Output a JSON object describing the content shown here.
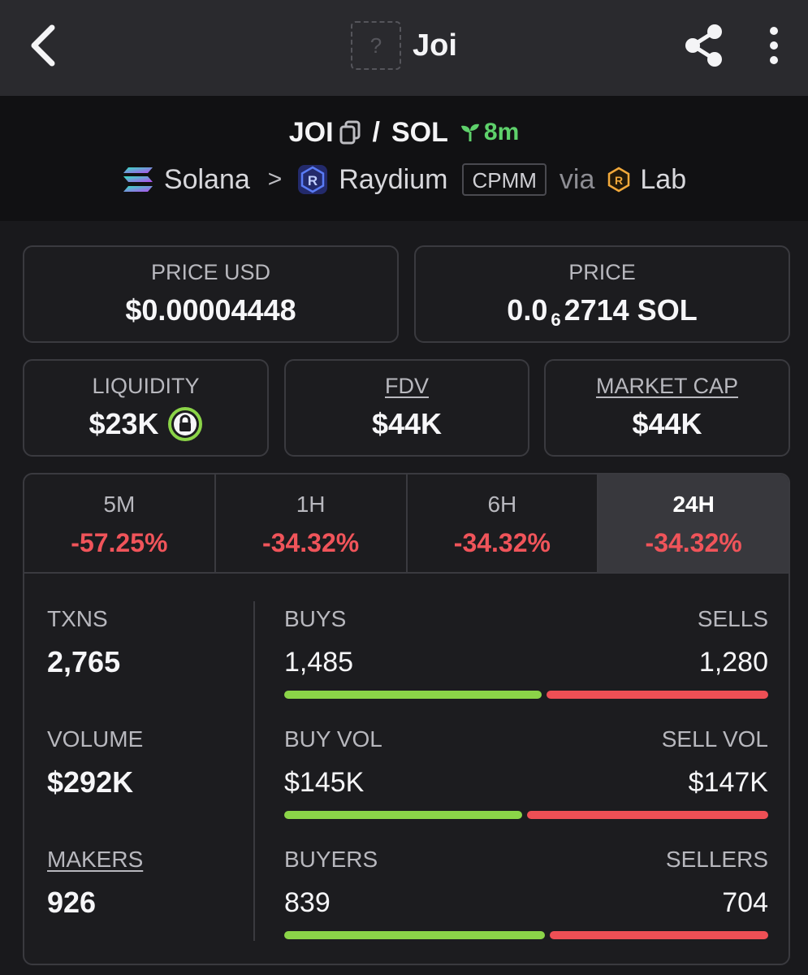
{
  "header": {
    "title": "Joi",
    "token_placeholder": "?"
  },
  "pair": {
    "base": "JOI",
    "separator": "/",
    "quote": "SOL",
    "age": "8m",
    "chain": "Solana",
    "chevron": ">",
    "dex": "Raydium",
    "pool_type": "CPMM",
    "via": "via",
    "launchpad": "Lab"
  },
  "stats": {
    "price_usd_label": "PRICE USD",
    "price_usd": "$0.00004448",
    "price_label": "PRICE",
    "price_prefix": "0.0",
    "price_zeros": "6",
    "price_suffix": "2714 SOL",
    "liquidity_label": "LIQUIDITY",
    "liquidity": "$23K",
    "fdv_label": "FDV",
    "fdv": "$44K",
    "mcap_label": "MARKET CAP",
    "mcap": "$44K"
  },
  "timeframes": [
    {
      "label": "5M",
      "change": "-57.25%"
    },
    {
      "label": "1H",
      "change": "-34.32%"
    },
    {
      "label": "6H",
      "change": "-34.32%"
    },
    {
      "label": "24H",
      "change": "-34.32%"
    }
  ],
  "active_timeframe": "24H",
  "activity": {
    "txns_label": "TXNS",
    "txns": "2,765",
    "volume_label": "VOLUME",
    "volume": "$292K",
    "makers_label": "MAKERS",
    "makers": "926",
    "buys_label": "BUYS",
    "buys": "1,485",
    "sells_label": "SELLS",
    "sells": "1,280",
    "buy_share": 0.537,
    "buy_vol_label": "BUY VOL",
    "buy_vol": "$145K",
    "sell_vol_label": "SELL VOL",
    "sell_vol": "$147K",
    "buy_vol_share": 0.497,
    "buyers_label": "BUYERS",
    "buyers": "839",
    "sellers_label": "SELLERS",
    "sellers": "704",
    "buyers_share": 0.544
  },
  "colors": {
    "buy": "#8bd448",
    "sell": "#ee4f55",
    "negative": "#f0545a",
    "age": "#5ed16b"
  }
}
